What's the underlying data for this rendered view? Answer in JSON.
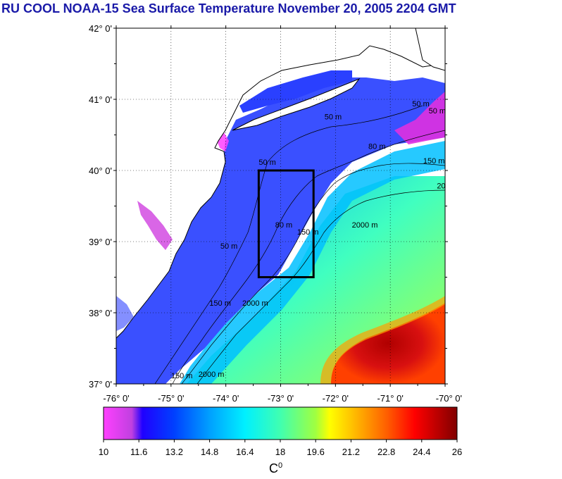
{
  "title": "RU COOL  NOAA-15 Sea Surface Temperature November 20, 2005 2204 GMT",
  "map": {
    "lat_labels": [
      "42° 0'",
      "41° 0'",
      "40° 0'",
      "39° 0'",
      "38° 0'",
      "37° 0'"
    ],
    "lon_labels": [
      "-76° 0'",
      "-75° 0'",
      "-74° 0'",
      "-73° 0'",
      "-72° 0'",
      "-71° 0'",
      "-70° 0'"
    ],
    "lat_range": [
      37,
      42
    ],
    "lon_range": [
      -76,
      -70
    ],
    "grid": "dotted",
    "study_box": {
      "lon": [
        -73.4,
        -72.4
      ],
      "lat": [
        38.5,
        40.0
      ]
    },
    "contour_labels": [
      {
        "text": "50 m",
        "lon": -72.2,
        "lat": 40.72
      },
      {
        "text": "80 m",
        "lon": -71.4,
        "lat": 40.3
      },
      {
        "text": "150 m",
        "lon": -70.4,
        "lat": 40.1
      },
      {
        "text": "50 m",
        "lon": -73.4,
        "lat": 40.08
      },
      {
        "text": "80 m",
        "lon": -73.1,
        "lat": 39.2
      },
      {
        "text": "150 m",
        "lon": -72.7,
        "lat": 39.1
      },
      {
        "text": "2000 m",
        "lon": -71.7,
        "lat": 39.2
      },
      {
        "text": "50 m",
        "lon": -74.1,
        "lat": 38.9
      },
      {
        "text": "150 m",
        "lon": -74.3,
        "lat": 38.1
      },
      {
        "text": "2000 m",
        "lon": -73.7,
        "lat": 38.1
      },
      {
        "text": "150 m",
        "lon": -75.0,
        "lat": 37.08
      },
      {
        "text": "2000 m",
        "lon": -74.5,
        "lat": 37.1
      },
      {
        "text": "20",
        "lon": -70.15,
        "lat": 39.75
      },
      {
        "text": "50 m",
        "lon": -70.6,
        "lat": 40.9
      },
      {
        "text": "50 m",
        "lon": -70.3,
        "lat": 40.8
      }
    ]
  },
  "colorbar": {
    "ticks": [
      "10",
      "11.6",
      "13.2",
      "14.8",
      "16.4",
      "18",
      "19.6",
      "21.2",
      "22.8",
      "24.4",
      "26"
    ],
    "min": 10,
    "max": 26,
    "unit_base": "C",
    "unit_sup": "0",
    "colors": [
      "#ff40ff",
      "#c040e0",
      "#0000ff",
      "#0050ff",
      "#00a0ff",
      "#00f0ff",
      "#40ffb0",
      "#a0ff40",
      "#ffff00",
      "#ffb000",
      "#ff6000",
      "#ff0000",
      "#c00000",
      "#800000"
    ]
  },
  "colors": {
    "land": "#ffffff",
    "shelf": "#3a50ff",
    "coast": "#000000",
    "title": "#1a1aa8"
  }
}
